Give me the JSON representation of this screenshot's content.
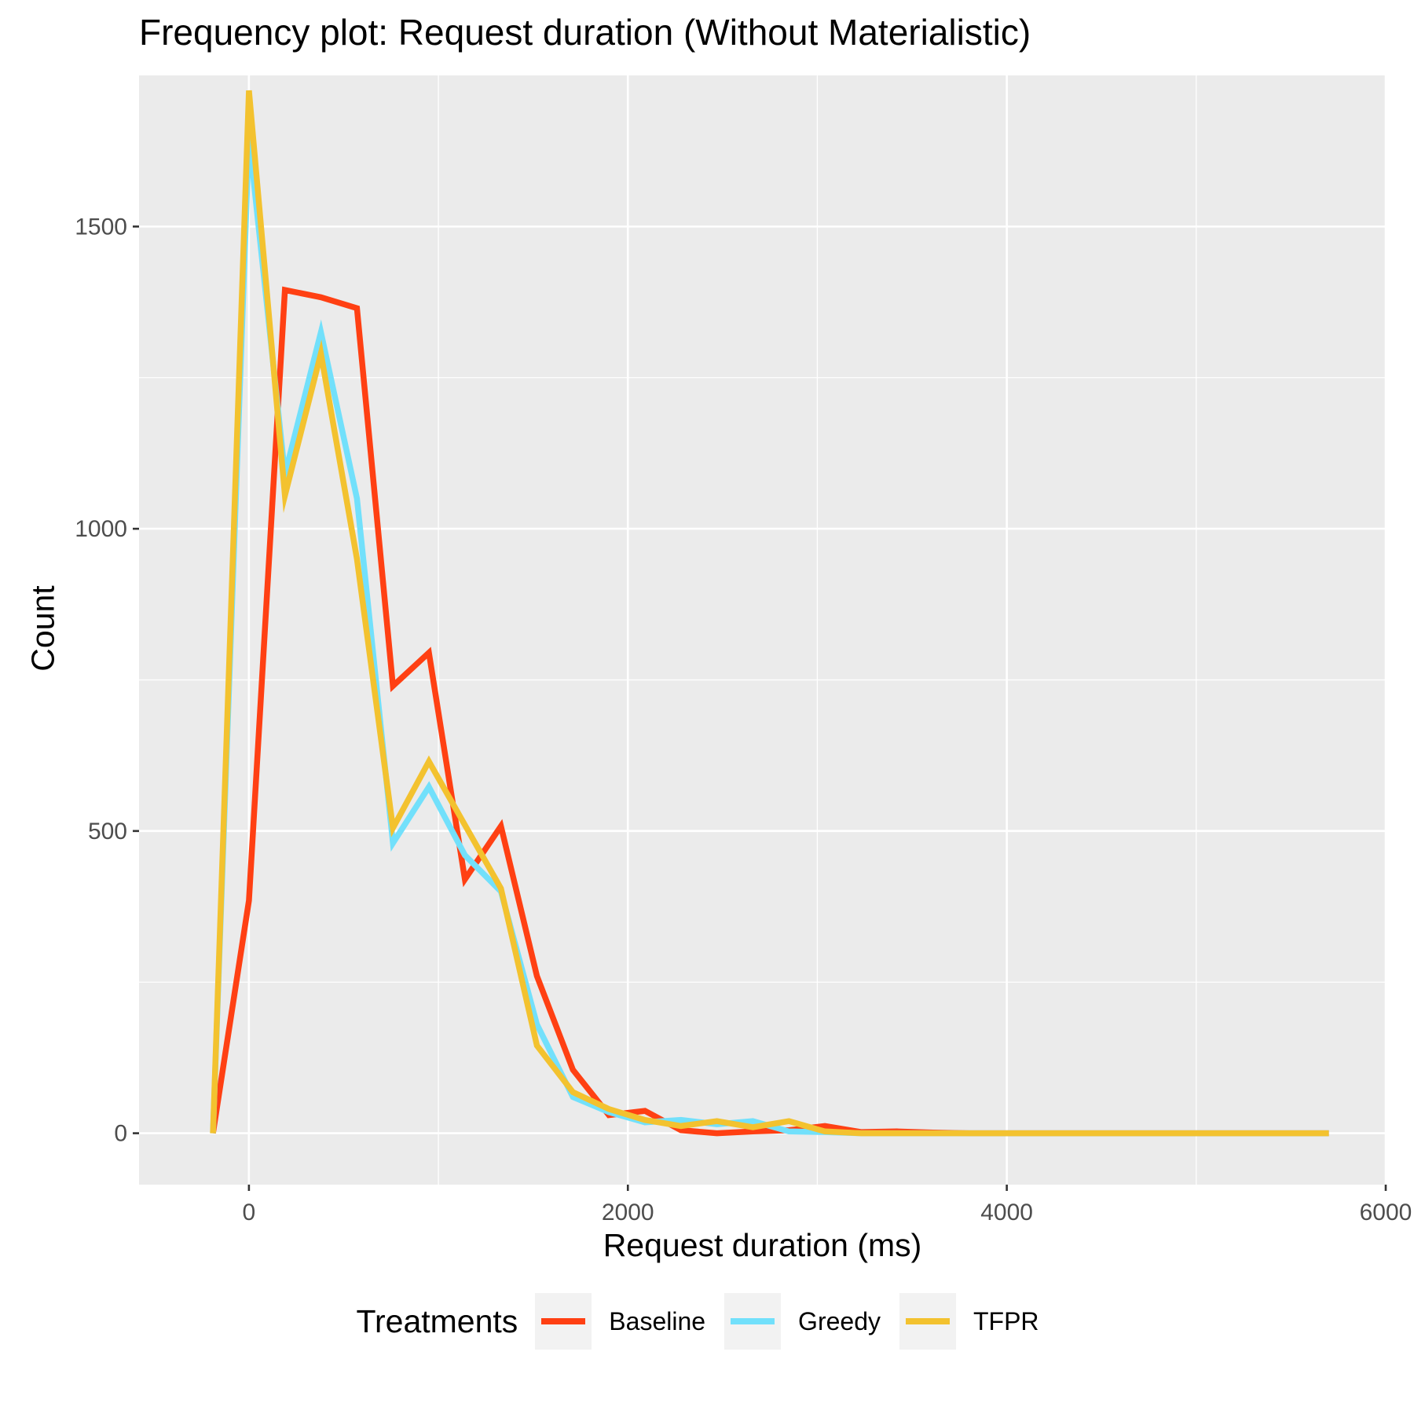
{
  "chart_data": {
    "type": "line",
    "title": "Frequency plot: Request duration (Without Materialistic)",
    "xlabel": "Request duration (ms)",
    "ylabel": "Count",
    "xlim": [
      -580,
      6000
    ],
    "ylim": [
      -85,
      1750
    ],
    "x_ticks": [
      0,
      2000,
      4000,
      6000
    ],
    "x_tick_labels": [
      "0",
      "2000",
      "4000",
      "6000"
    ],
    "y_ticks": [
      0,
      500,
      1000,
      1500
    ],
    "y_tick_labels": [
      "0",
      "500",
      "1000",
      "1500"
    ],
    "grid": true,
    "legend_position": "bottom",
    "legend_title": "Treatments",
    "x": [
      -190,
      0,
      190,
      380,
      570,
      760,
      950,
      1140,
      1330,
      1520,
      1710,
      1900,
      2090,
      2280,
      2470,
      2660,
      2850,
      3040,
      3230,
      3420,
      3610,
      3800,
      3990,
      4180,
      4370,
      4560,
      4750,
      4940,
      5130,
      5320,
      5510,
      5700
    ],
    "series": [
      {
        "name": "Baseline",
        "color": "#ff4013",
        "values": [
          0,
          385,
          1395,
          1383,
          1365,
          740,
          795,
          420,
          508,
          260,
          105,
          30,
          37,
          5,
          0,
          3,
          5,
          12,
          2,
          3,
          1,
          0,
          0,
          0,
          0,
          0,
          0,
          0,
          0,
          0,
          0,
          0
        ]
      },
      {
        "name": "Greedy",
        "color": "#72e0fb",
        "values": [
          0,
          1650,
          1090,
          1325,
          1050,
          480,
          573,
          460,
          400,
          180,
          60,
          35,
          18,
          22,
          15,
          20,
          3,
          2,
          0,
          0,
          0,
          0,
          0,
          0,
          0,
          0,
          0,
          0,
          0,
          0,
          0,
          0
        ]
      },
      {
        "name": "TFPR",
        "color": "#f3c22f",
        "values": [
          0,
          1725,
          1055,
          1290,
          950,
          505,
          615,
          510,
          405,
          145,
          68,
          40,
          22,
          12,
          20,
          10,
          20,
          3,
          0,
          0,
          0,
          0,
          0,
          0,
          0,
          0,
          0,
          0,
          0,
          0,
          0,
          0
        ]
      }
    ]
  }
}
